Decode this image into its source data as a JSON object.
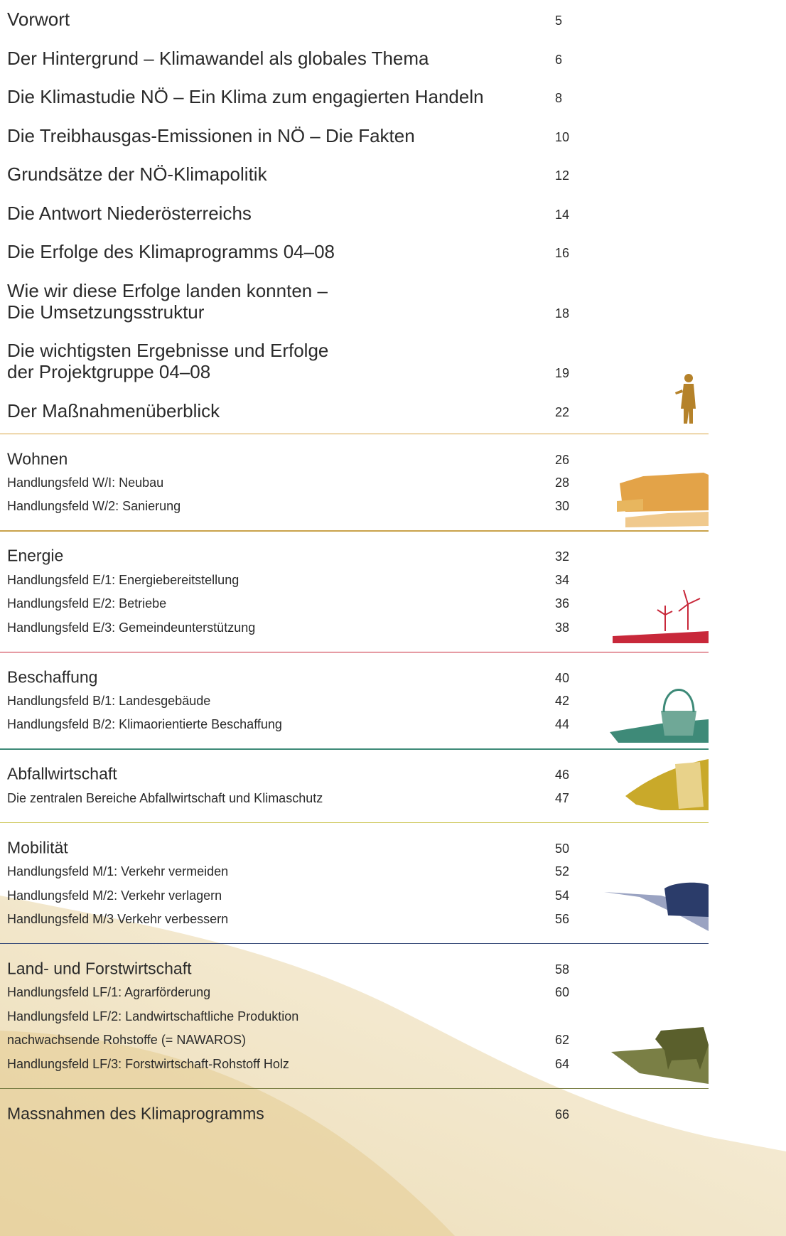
{
  "entries": [
    {
      "lines": [
        "Vorwort"
      ],
      "page": 5
    },
    {
      "lines": [
        "Der Hintergrund – Klimawandel als globales Thema"
      ],
      "page": 6
    },
    {
      "lines": [
        "Die Klimastudie NÖ – Ein Klima zum engagierten Handeln"
      ],
      "page": 8
    },
    {
      "lines": [
        "Die Treibhausgas-Emissionen in NÖ – Die Fakten"
      ],
      "page": 10
    },
    {
      "lines": [
        "Grundsätze der NÖ-Klimapolitik"
      ],
      "page": 12
    },
    {
      "lines": [
        "Die Antwort Niederösterreichs"
      ],
      "page": 14
    },
    {
      "lines": [
        "Die Erfolge des Klimaprogramms 04–08"
      ],
      "page": 16
    },
    {
      "lines": [
        "Wie wir diese Erfolge landen konnten –",
        "Die Umsetzungsstruktur"
      ],
      "page": 18
    },
    {
      "lines": [
        "Die wichtigsten Ergebnisse und Erfolge",
        "der Projektgruppe 04–08"
      ],
      "page": 19
    },
    {
      "lines": [
        "Der Maßnahmenüberblick"
      ],
      "page": 22
    }
  ],
  "sections": [
    {
      "title": "Wohnen",
      "page": 26,
      "color": "#d9a441",
      "items": [
        {
          "lines": [
            "Handlungsfeld W/I: Neubau"
          ],
          "page": 28
        },
        {
          "lines": [
            "Handlungsfeld W/2: Sanierung"
          ],
          "page": 30
        }
      ]
    },
    {
      "title": "Energie",
      "page": 32,
      "color": "#c9a24a",
      "items": [
        {
          "lines": [
            "Handlungsfeld E/1: Energiebereitstellung"
          ],
          "page": 34
        },
        {
          "lines": [
            "Handlungsfeld E/2: Betriebe"
          ],
          "page": 36
        },
        {
          "lines": [
            "Handlungsfeld E/3: Gemeindeunterstützung"
          ],
          "page": 38
        }
      ]
    },
    {
      "title": "Beschaffung",
      "page": 40,
      "color": "#c8283a",
      "items": [
        {
          "lines": [
            "Handlungsfeld B/1: Landesgebäude"
          ],
          "page": 42
        },
        {
          "lines": [
            "Handlungsfeld B/2: Klimaorientierte Beschaffung"
          ],
          "page": 44
        }
      ]
    },
    {
      "title": "Abfallwirtschaft",
      "page": 46,
      "color": "#3e8a78",
      "items": [
        {
          "lines": [
            "Die zentralen Bereiche Abfallwirtschaft und Klimaschutz"
          ],
          "page": 47
        }
      ]
    },
    {
      "title": "Mobilität",
      "page": 50,
      "color": "#c9c24a",
      "items": [
        {
          "lines": [
            "Handlungsfeld M/1: Verkehr vermeiden"
          ],
          "page": 52
        },
        {
          "lines": [
            "Handlungsfeld M/2: Verkehr verlagern"
          ],
          "page": 54
        },
        {
          "lines": [
            "Handlungsfeld M/3 Verkehr verbessern"
          ],
          "page": 56
        }
      ]
    },
    {
      "title": "Land- und Forstwirtschaft",
      "page": 58,
      "color": "#3a4d7a",
      "items": [
        {
          "lines": [
            "Handlungsfeld LF/1: Agrarförderung"
          ],
          "page": 60
        },
        {
          "lines": [
            "Handlungsfeld LF/2: Landwirtschaftliche Produktion",
            "nachwachsende Rohstoffe (= NAWAROS)"
          ],
          "page": 62
        },
        {
          "lines": [
            "Handlungsfeld LF/3: Forstwirtschaft-Rohstoff Holz"
          ],
          "page": 64
        }
      ]
    },
    {
      "title": "Massnahmen des Klimaprogramms",
      "page": 66,
      "color": "#7a7f45",
      "items": []
    }
  ]
}
